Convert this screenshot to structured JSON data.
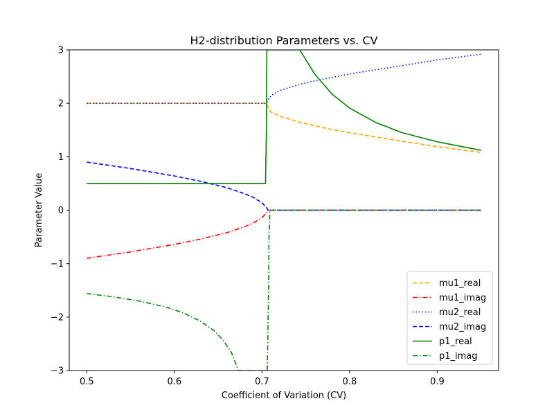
{
  "chart_data": {
    "type": "line",
    "title": "H2-distribution Parameters vs. CV",
    "xlabel": "Coefficient of Variation (CV)",
    "ylabel": "Parameter Value",
    "xlim": [
      0.48,
      0.97
    ],
    "ylim": [
      -3,
      3
    ],
    "xticks": [
      0.5,
      0.6,
      0.7,
      0.8,
      0.9
    ],
    "xtick_labels": [
      "0.5",
      "0.6",
      "0.7",
      "0.8",
      "0.9"
    ],
    "yticks": [
      -3,
      -2,
      -1,
      0,
      1,
      2,
      3
    ],
    "ytick_labels": [
      "−3",
      "−2",
      "−1",
      "0",
      "1",
      "2",
      "3"
    ],
    "grid": false,
    "legend_position": "bottom-right",
    "series": [
      {
        "name": "mu1_real",
        "color": "#ffa500",
        "style": "dashed",
        "x": [
          0.5,
          0.55,
          0.6,
          0.65,
          0.7,
          0.705,
          0.708,
          0.71,
          0.72,
          0.74,
          0.76,
          0.78,
          0.8,
          0.83,
          0.86,
          0.9,
          0.95
        ],
        "y": [
          2.0,
          2.0,
          2.0,
          2.0,
          2.0,
          2.0,
          1.9,
          1.84,
          1.76,
          1.66,
          1.58,
          1.51,
          1.45,
          1.37,
          1.29,
          1.19,
          1.08
        ]
      },
      {
        "name": "mu1_imag",
        "color": "#ff0000",
        "style": "dashdot",
        "x": [
          0.5,
          0.55,
          0.6,
          0.63,
          0.66,
          0.68,
          0.69,
          0.7,
          0.705,
          0.707,
          0.71,
          0.75,
          0.8,
          0.85,
          0.9,
          0.95
        ],
        "y": [
          -0.9,
          -0.78,
          -0.64,
          -0.54,
          -0.42,
          -0.31,
          -0.24,
          -0.14,
          -0.05,
          0.0,
          0.0,
          0.0,
          0.0,
          0.0,
          0.0,
          0.0
        ]
      },
      {
        "name": "mu2_real",
        "color": "#0000ff",
        "style": "dotted",
        "x": [
          0.5,
          0.55,
          0.6,
          0.65,
          0.7,
          0.705,
          0.708,
          0.712,
          0.72,
          0.74,
          0.76,
          0.8,
          0.85,
          0.9,
          0.95
        ],
        "y": [
          2.0,
          2.0,
          2.0,
          2.0,
          2.0,
          2.0,
          2.1,
          2.16,
          2.24,
          2.34,
          2.42,
          2.55,
          2.68,
          2.81,
          2.92
        ]
      },
      {
        "name": "mu2_imag",
        "color": "#0000ff",
        "style": "dashed",
        "x": [
          0.5,
          0.55,
          0.6,
          0.63,
          0.66,
          0.68,
          0.69,
          0.7,
          0.705,
          0.707,
          0.71,
          0.75,
          0.8,
          0.85,
          0.9,
          0.95
        ],
        "y": [
          0.9,
          0.78,
          0.64,
          0.54,
          0.42,
          0.31,
          0.24,
          0.14,
          0.05,
          0.0,
          0.0,
          0.0,
          0.0,
          0.0,
          0.0,
          0.0
        ]
      },
      {
        "name": "p1_real",
        "color": "#008000",
        "style": "solid",
        "x": [
          0.5,
          0.55,
          0.6,
          0.65,
          0.7,
          0.704,
          0.705,
          0.7055,
          0.743,
          0.76,
          0.78,
          0.8,
          0.83,
          0.86,
          0.9,
          0.95
        ],
        "y": [
          0.5,
          0.5,
          0.5,
          0.5,
          0.5,
          0.5,
          1.5,
          3.0,
          3.0,
          2.55,
          2.17,
          1.91,
          1.64,
          1.45,
          1.28,
          1.12
        ]
      },
      {
        "name": "p1_imag",
        "color": "#008000",
        "style": "dashdot",
        "x": [
          0.5,
          0.53,
          0.56,
          0.59,
          0.61,
          0.63,
          0.645,
          0.655,
          0.665,
          0.673,
          0.706,
          0.7075,
          0.708,
          0.709,
          0.71,
          0.75,
          0.8,
          0.85,
          0.9,
          0.95
        ],
        "y": [
          -1.56,
          -1.62,
          -1.7,
          -1.81,
          -1.92,
          -2.08,
          -2.25,
          -2.42,
          -2.66,
          -3.0,
          -3.0,
          -1.5,
          -0.5,
          0.0,
          0.0,
          0.0,
          0.0,
          0.0,
          0.0,
          0.0
        ]
      }
    ]
  }
}
